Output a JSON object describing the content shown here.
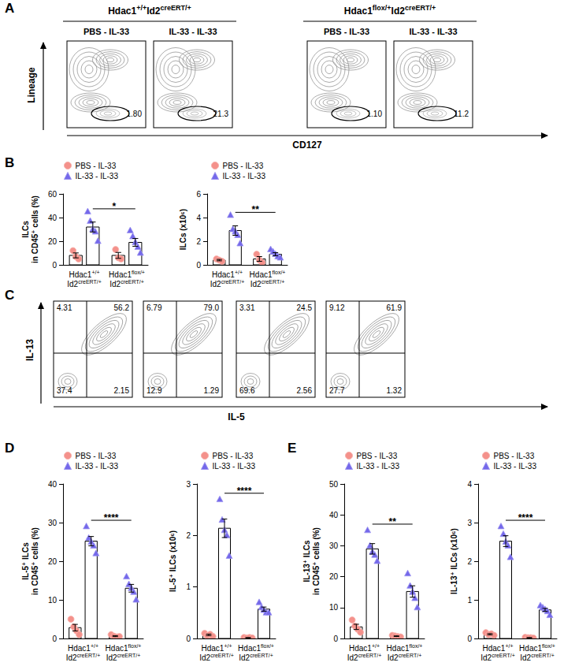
{
  "panel_labels": [
    "A",
    "B",
    "C",
    "D",
    "E"
  ],
  "flow_A": {
    "groups": [
      [
        {
          "gene": "Hdac1",
          "allele": "+/+"
        },
        {
          "gene": "Id2",
          "allele": "creERT/+"
        }
      ],
      [
        {
          "gene": "Hdac1",
          "allele": "flox/+"
        },
        {
          "gene": "Id2",
          "allele": "creERT/+"
        }
      ]
    ],
    "plots": [
      {
        "title": "PBS - IL-33",
        "gate": "1.80"
      },
      {
        "title": "IL-33 - IL-33",
        "gate": "21.3"
      },
      {
        "title": "PBS - IL-33",
        "gate": "1.10"
      },
      {
        "title": "IL-33 - IL-33",
        "gate": "11.2"
      }
    ],
    "ylabel": "Lineage",
    "xlabel": "CD127"
  },
  "flow_C": {
    "ylabel": "IL-13",
    "xlabel": "IL-5",
    "plots": [
      {
        "upper_left": "4.31",
        "upper_right": "56.2",
        "lower_left": "37.4",
        "lower_right": "2.15"
      },
      {
        "upper_left": "6.79",
        "upper_right": "79.0",
        "lower_left": "12.9",
        "lower_right": "1.29"
      },
      {
        "upper_left": "3.31",
        "upper_right": "24.5",
        "lower_left": "69.6",
        "lower_right": "2.56"
      },
      {
        "upper_left": "9.12",
        "upper_right": "61.9",
        "lower_left": "27.7",
        "lower_right": "1.32"
      }
    ]
  },
  "chart_data": [
    {
      "type": "bar",
      "ylabel": "ILCs\nin CD45⁺ cells (%)",
      "categories": [
        [
          {
            "gene": "Hdac1",
            "allele": "+/+"
          },
          {
            "gene": "Id2",
            "allele": "creERT/+"
          }
        ],
        [
          {
            "gene": "Hdac1",
            "allele": "flox/+"
          },
          {
            "gene": "Id2",
            "allele": "creERT/+"
          }
        ]
      ],
      "series": [
        {
          "name": "PBS - IL-33",
          "color": "#f4918b",
          "marker": "circle",
          "values": [
            8,
            8
          ],
          "errors": [
            2.1,
            2.5
          ],
          "points": [
            [
              12,
              7,
              5
            ],
            [
              13,
              6,
              5
            ]
          ]
        },
        {
          "name": "IL-33 - IL-33",
          "color": "#7468ea",
          "marker": "triangle",
          "values": [
            32,
            19
          ],
          "errors": [
            4.2,
            3.3
          ],
          "points": [
            [
              45,
              37,
              30,
              28,
              20
            ],
            [
              29,
              24,
              19,
              15,
              10
            ]
          ]
        }
      ],
      "ylim": [
        0,
        60
      ],
      "yticks": [
        0,
        20,
        40,
        60
      ],
      "grid": false,
      "legend": "upper left",
      "significance": {
        "label": "*",
        "series": "IL-33 - IL-33"
      }
    },
    {
      "type": "bar",
      "ylabel": "ILCs (x10⁶)",
      "categories": [
        [
          {
            "gene": "Hdac1",
            "allele": "+/+"
          },
          {
            "gene": "Id2",
            "allele": "creERT/+"
          }
        ],
        [
          {
            "gene": "Hdac1",
            "allele": "flox/+"
          },
          {
            "gene": "Id2",
            "allele": "creERT/+"
          }
        ]
      ],
      "series": [
        {
          "name": "PBS - IL-33",
          "color": "#f4918b",
          "marker": "circle",
          "values": [
            0.4,
            0.5
          ],
          "errors": [
            0.06,
            0.2
          ],
          "points": [
            [
              0.5,
              0.4,
              0.3
            ],
            [
              0.9,
              0.4,
              0.2
            ]
          ]
        },
        {
          "name": "IL-33 - IL-33",
          "color": "#7468ea",
          "marker": "triangle",
          "values": [
            2.9,
            0.9
          ],
          "errors": [
            0.4,
            0.13
          ],
          "points": [
            [
              4.2,
              3.0,
              2.8,
              2.5,
              1.8
            ],
            [
              1.3,
              1.1,
              0.9,
              0.7,
              0.6
            ]
          ]
        }
      ],
      "ylim": [
        0,
        6
      ],
      "yticks": [
        0,
        2,
        4,
        6
      ],
      "grid": false,
      "legend": "upper left",
      "significance": {
        "label": "**",
        "series": "IL-33 - IL-33"
      }
    },
    {
      "type": "bar",
      "ylabel": "IL-5⁺ ILCs\nin CD45⁺ cells (%)",
      "categories": [
        [
          {
            "gene": "Hdac1",
            "allele": "+/+"
          },
          {
            "gene": "Id2",
            "allele": "creERT/+"
          }
        ],
        [
          {
            "gene": "Hdac1",
            "allele": "flox/+"
          },
          {
            "gene": "Id2",
            "allele": "creERT/+"
          }
        ]
      ],
      "series": [
        {
          "name": "PBS - IL-33",
          "color": "#f4918b",
          "marker": "circle",
          "values": [
            2.8,
            0.6
          ],
          "errors": [
            0.85,
            0.13
          ],
          "points": [
            [
              5,
              3,
              2,
              1
            ],
            [
              1,
              0.6,
              0.4,
              0.5
            ]
          ]
        },
        {
          "name": "IL-33 - IL-33",
          "color": "#7468ea",
          "marker": "triangle",
          "values": [
            25.2,
            13
          ],
          "errors": [
            1.2,
            1
          ],
          "points": [
            [
              29,
              26,
              25,
              24,
              22
            ],
            [
              16,
              14,
              13,
              12,
              10
            ]
          ]
        }
      ],
      "ylim": [
        0,
        40
      ],
      "yticks": [
        0,
        10,
        20,
        30,
        40
      ],
      "grid": false,
      "legend": "upper left",
      "significance": {
        "label": "****",
        "series": "IL-33 - IL-33"
      }
    },
    {
      "type": "bar",
      "ylabel": "IL-5⁺ ILCs (x10⁶)",
      "categories": [
        [
          {
            "gene": "Hdac1",
            "allele": "+/+"
          },
          {
            "gene": "Id2",
            "allele": "creERT/+"
          }
        ],
        [
          {
            "gene": "Hdac1",
            "allele": "flox/+"
          },
          {
            "gene": "Id2",
            "allele": "creERT/+"
          }
        ]
      ],
      "series": [
        {
          "name": "PBS - IL-33",
          "color": "#f4918b",
          "marker": "circle",
          "values": [
            0.07,
            0.015
          ],
          "errors": [
            0.014,
            0.003
          ],
          "points": [
            [
              0.1,
              0.05,
              0.08,
              0.04
            ],
            [
              0.02,
              0.01,
              0.02,
              0.01
            ]
          ]
        },
        {
          "name": "IL-33 - IL-33",
          "color": "#7468ea",
          "marker": "triangle",
          "values": [
            2.14,
            0.57
          ],
          "errors": [
            0.18,
            0.04
          ],
          "points": [
            [
              2.7,
              2.3,
              2.1,
              2.0,
              1.6
            ],
            [
              0.7,
              0.6,
              0.55,
              0.5,
              0.5
            ]
          ]
        }
      ],
      "ylim": [
        0,
        3
      ],
      "yticks": [
        0,
        1,
        2,
        3
      ],
      "grid": false,
      "legend": "upper left",
      "significance": {
        "label": "****",
        "series": "IL-33 - IL-33"
      }
    },
    {
      "type": "bar",
      "ylabel": "IL-13⁺ ILCs\nin CD45⁺ cells (%)",
      "categories": [
        [
          {
            "gene": "Hdac1",
            "allele": "+/+"
          },
          {
            "gene": "Id2",
            "allele": "creERT/+"
          }
        ],
        [
          {
            "gene": "Hdac1",
            "allele": "flox/+"
          },
          {
            "gene": "Id2",
            "allele": "creERT/+"
          }
        ]
      ],
      "series": [
        {
          "name": "PBS - IL-33",
          "color": "#f4918b",
          "marker": "circle",
          "values": [
            3.75,
            0.73
          ],
          "errors": [
            0.85,
            0.11
          ],
          "points": [
            [
              6,
              4,
              3,
              2
            ],
            [
              1,
              0.8,
              0.6,
              0.5
            ]
          ]
        },
        {
          "name": "IL-33 - IL-33",
          "color": "#7468ea",
          "marker": "triangle",
          "values": [
            29,
            15.2
          ],
          "errors": [
            1.7,
            1.85
          ],
          "points": [
            [
              35,
              30,
              28,
              27,
              25
            ],
            [
              21,
              17,
              15,
              13,
              10
            ]
          ]
        }
      ],
      "ylim": [
        0,
        50
      ],
      "yticks": [
        0,
        10,
        20,
        30,
        40,
        50
      ],
      "grid": false,
      "legend": "upper left",
      "significance": {
        "label": "**",
        "series": "IL-33 - IL-33"
      }
    },
    {
      "type": "bar",
      "ylabel": "IL-13⁺ ILCs (x10⁶)",
      "categories": [
        [
          {
            "gene": "Hdac1",
            "allele": "+/+"
          },
          {
            "gene": "Id2",
            "allele": "creERT/+"
          }
        ],
        [
          {
            "gene": "Hdac1",
            "allele": "flox/+"
          },
          {
            "gene": "Id2",
            "allele": "creERT/+"
          }
        ]
      ],
      "series": [
        {
          "name": "PBS - IL-33",
          "color": "#f4918b",
          "marker": "circle",
          "values": [
            0.11,
            0.02
          ],
          "errors": [
            0.015,
            0.004
          ],
          "points": [
            [
              0.15,
              0.1,
              0.12,
              0.08
            ],
            [
              0.03,
              0.02,
              0.02,
              0.01
            ]
          ]
        },
        {
          "name": "IL-33 - IL-33",
          "color": "#7468ea",
          "marker": "triangle",
          "values": [
            2.52,
            0.74
          ],
          "errors": [
            0.14,
            0.04
          ],
          "points": [
            [
              2.9,
              2.7,
              2.5,
              2.4,
              2.1
            ],
            [
              0.85,
              0.8,
              0.75,
              0.7,
              0.6
            ]
          ]
        }
      ],
      "ylim": [
        0,
        4
      ],
      "yticks": [
        0,
        1,
        2,
        3,
        4
      ],
      "grid": false,
      "legend": "upper left",
      "significance": {
        "label": "****",
        "series": "IL-33 - IL-33"
      }
    }
  ]
}
